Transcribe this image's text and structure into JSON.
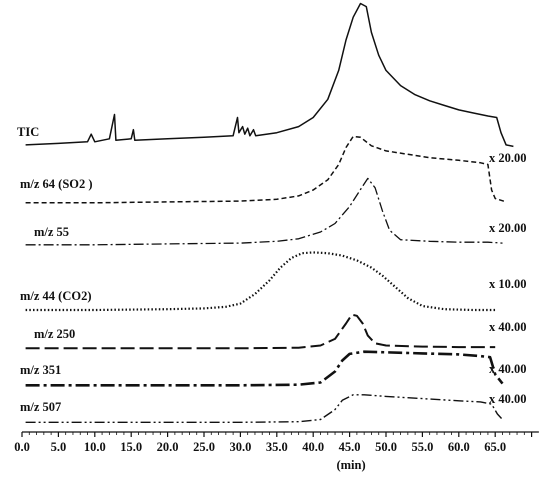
{
  "chart_data": {
    "type": "line",
    "xlabel": "(min)",
    "xlim": [
      0,
      71
    ],
    "x_ticks": [
      "0.0",
      "5.0",
      "10.0",
      "15.0",
      "20.0",
      "25.0",
      "30.0",
      "35.0",
      "40.0",
      "45.0",
      "50.0",
      "55.0",
      "60.0",
      "65.0"
    ],
    "y_axis_visible": false,
    "series": [
      {
        "name": "TIC",
        "scale": "",
        "line_style": "solid",
        "points": [
          [
            0.5,
            0.06
          ],
          [
            5,
            0.07
          ],
          [
            9,
            0.08
          ],
          [
            9.5,
            0.13
          ],
          [
            10,
            0.08
          ],
          [
            12,
            0.1
          ],
          [
            12.7,
            0.26
          ],
          [
            12.9,
            0.09
          ],
          [
            15,
            0.1
          ],
          [
            15.3,
            0.16
          ],
          [
            15.5,
            0.09
          ],
          [
            20,
            0.1
          ],
          [
            25,
            0.11
          ],
          [
            29,
            0.12
          ],
          [
            29.6,
            0.24
          ],
          [
            29.8,
            0.14
          ],
          [
            30.3,
            0.18
          ],
          [
            30.6,
            0.13
          ],
          [
            31,
            0.17
          ],
          [
            31.3,
            0.12
          ],
          [
            31.8,
            0.16
          ],
          [
            32.1,
            0.12
          ],
          [
            35,
            0.14
          ],
          [
            38,
            0.18
          ],
          [
            40,
            0.24
          ],
          [
            42,
            0.36
          ],
          [
            43.5,
            0.55
          ],
          [
            44.5,
            0.75
          ],
          [
            45.5,
            0.9
          ],
          [
            46.5,
            0.99
          ],
          [
            47.3,
            0.97
          ],
          [
            48,
            0.8
          ],
          [
            49,
            0.65
          ],
          [
            50,
            0.55
          ],
          [
            52,
            0.45
          ],
          [
            54,
            0.39
          ],
          [
            56,
            0.35
          ],
          [
            58,
            0.32
          ],
          [
            60,
            0.29
          ],
          [
            62,
            0.27
          ],
          [
            64,
            0.25
          ],
          [
            65.2,
            0.24
          ],
          [
            65.8,
            0.14
          ],
          [
            66.5,
            0.06
          ],
          [
            67.5,
            0.05
          ]
        ]
      },
      {
        "name": "m/z 64 (SO2 )",
        "scale": "x 20.00",
        "line_style": "dashed",
        "points": [
          [
            0.5,
            0.05
          ],
          [
            10,
            0.05
          ],
          [
            20,
            0.06
          ],
          [
            30,
            0.07
          ],
          [
            35,
            0.09
          ],
          [
            38,
            0.13
          ],
          [
            40,
            0.2
          ],
          [
            42,
            0.32
          ],
          [
            43.5,
            0.5
          ],
          [
            44.5,
            0.7
          ],
          [
            45.5,
            0.83
          ],
          [
            46.5,
            0.82
          ],
          [
            48,
            0.72
          ],
          [
            50,
            0.66
          ],
          [
            53,
            0.62
          ],
          [
            56,
            0.58
          ],
          [
            60,
            0.55
          ],
          [
            63,
            0.52
          ],
          [
            64,
            0.5
          ],
          [
            64.5,
            0.2
          ],
          [
            65,
            0.1
          ],
          [
            66.5,
            0.06
          ]
        ]
      },
      {
        "name": "m/z 55",
        "scale": "x 20.00",
        "line_style": "dash-dot",
        "points": [
          [
            0.5,
            0.05
          ],
          [
            10,
            0.05
          ],
          [
            20,
            0.06
          ],
          [
            30,
            0.07
          ],
          [
            35,
            0.09
          ],
          [
            38,
            0.12
          ],
          [
            41,
            0.2
          ],
          [
            43,
            0.3
          ],
          [
            45,
            0.5
          ],
          [
            46.5,
            0.7
          ],
          [
            47.5,
            0.83
          ],
          [
            48.5,
            0.72
          ],
          [
            49.5,
            0.45
          ],
          [
            50.5,
            0.22
          ],
          [
            52,
            0.11
          ],
          [
            56,
            0.09
          ],
          [
            60,
            0.08
          ],
          [
            64,
            0.08
          ],
          [
            66,
            0.07
          ]
        ]
      },
      {
        "name": "m/z 44 (CO2)",
        "scale": "x 10.00",
        "line_style": "dotted",
        "points": [
          [
            0.5,
            0.05
          ],
          [
            10,
            0.05
          ],
          [
            20,
            0.06
          ],
          [
            25,
            0.07
          ],
          [
            28,
            0.09
          ],
          [
            30,
            0.13
          ],
          [
            32,
            0.25
          ],
          [
            34,
            0.42
          ],
          [
            35.5,
            0.58
          ],
          [
            37,
            0.7
          ],
          [
            38.5,
            0.76
          ],
          [
            40,
            0.77
          ],
          [
            42,
            0.76
          ],
          [
            44,
            0.73
          ],
          [
            46,
            0.67
          ],
          [
            48,
            0.58
          ],
          [
            49.5,
            0.48
          ],
          [
            51,
            0.36
          ],
          [
            53,
            0.2
          ],
          [
            55,
            0.1
          ],
          [
            58,
            0.06
          ],
          [
            62,
            0.05
          ],
          [
            65,
            0.05
          ]
        ]
      },
      {
        "name": "m/z 250",
        "scale": "x 40.00",
        "line_style": "long-dash",
        "points": [
          [
            0.5,
            0.05
          ],
          [
            10,
            0.05
          ],
          [
            20,
            0.05
          ],
          [
            30,
            0.05
          ],
          [
            38,
            0.06
          ],
          [
            41,
            0.1
          ],
          [
            43,
            0.22
          ],
          [
            44.5,
            0.5
          ],
          [
            45.3,
            0.66
          ],
          [
            46,
            0.64
          ],
          [
            46.8,
            0.5
          ],
          [
            47.5,
            0.28
          ],
          [
            48.5,
            0.14
          ],
          [
            50,
            0.1
          ],
          [
            55,
            0.08
          ],
          [
            60,
            0.07
          ],
          [
            65,
            0.07
          ]
        ]
      },
      {
        "name": "m/z 351",
        "scale": "x 40.00",
        "line_style": "heavy-dash-dot",
        "points": [
          [
            0.5,
            0.05
          ],
          [
            10,
            0.05
          ],
          [
            20,
            0.05
          ],
          [
            30,
            0.05
          ],
          [
            38,
            0.06
          ],
          [
            41,
            0.1
          ],
          [
            43,
            0.3
          ],
          [
            44,
            0.5
          ],
          [
            45,
            0.62
          ],
          [
            47,
            0.66
          ],
          [
            50,
            0.65
          ],
          [
            55,
            0.63
          ],
          [
            60,
            0.61
          ],
          [
            63,
            0.58
          ],
          [
            64.3,
            0.56
          ],
          [
            65,
            0.25
          ],
          [
            66,
            0.08
          ]
        ]
      },
      {
        "name": "m/z 507",
        "scale": "x 40.00",
        "line_style": "dash-dot-dot",
        "points": [
          [
            0.5,
            0.05
          ],
          [
            10,
            0.05
          ],
          [
            20,
            0.05
          ],
          [
            30,
            0.05
          ],
          [
            38,
            0.06
          ],
          [
            41,
            0.1
          ],
          [
            43,
            0.28
          ],
          [
            44,
            0.45
          ],
          [
            45.5,
            0.55
          ],
          [
            47,
            0.55
          ],
          [
            50,
            0.52
          ],
          [
            55,
            0.48
          ],
          [
            60,
            0.44
          ],
          [
            63,
            0.42
          ],
          [
            64.5,
            0.38
          ],
          [
            65.3,
            0.2
          ],
          [
            66,
            0.1
          ]
        ]
      }
    ]
  }
}
